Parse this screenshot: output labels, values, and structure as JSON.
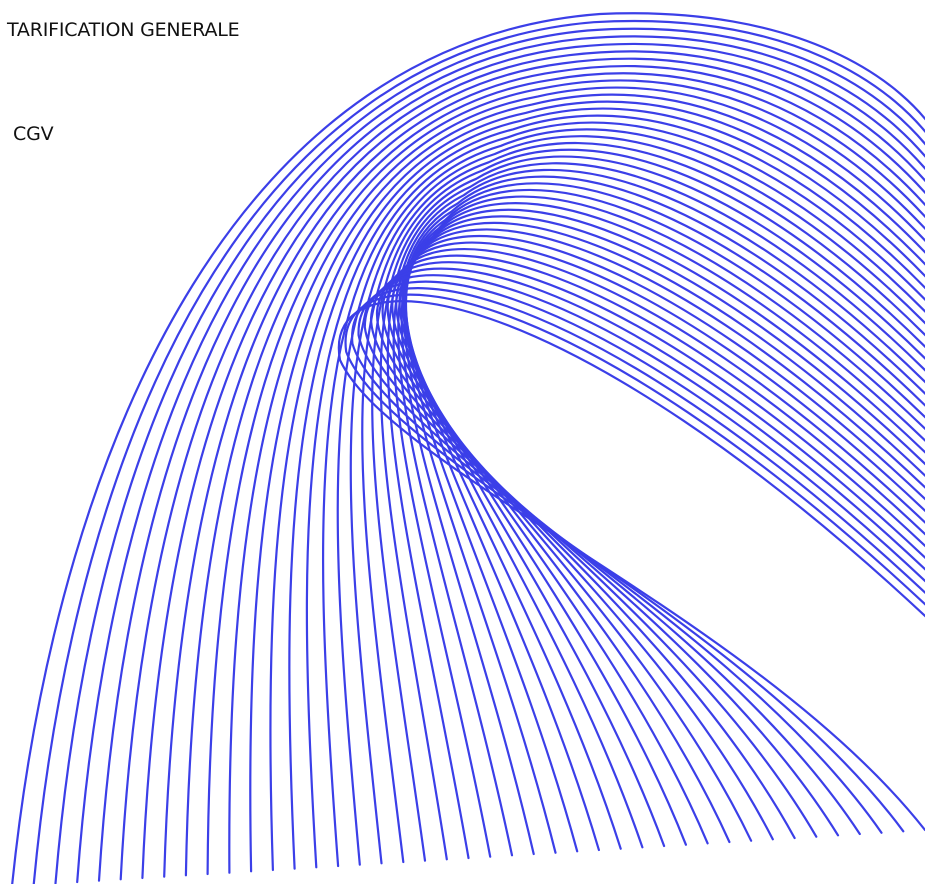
{
  "nav": {
    "items": [
      {
        "label": "TARIFICATION GENERALE"
      },
      {
        "label": "CGV"
      }
    ]
  },
  "decoration": {
    "name": "line-ribbon-graphic",
    "stroke_color": "#3b3fe8"
  }
}
